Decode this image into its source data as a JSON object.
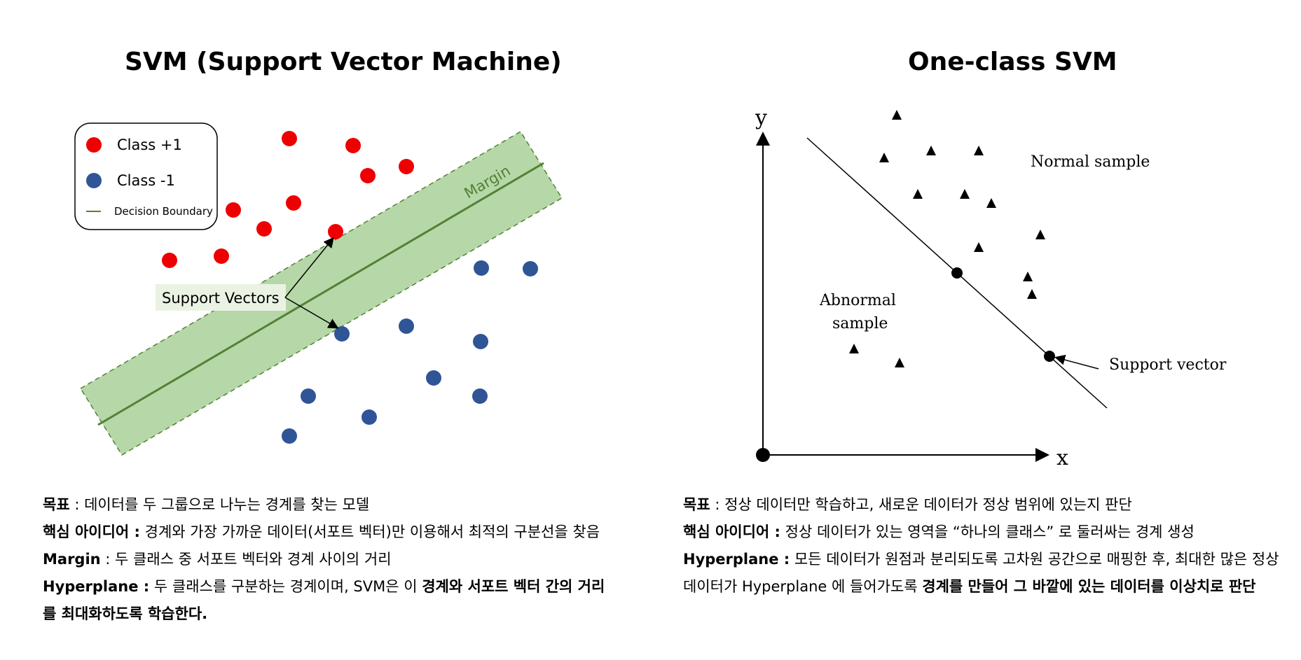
{
  "svm": {
    "title": "SVM (Support Vector Machine)",
    "legend": {
      "class_pos": "Class +1",
      "class_neg": "Class -1",
      "boundary": "Decision Boundary"
    },
    "margin_label": "Margin",
    "support_vectors_label": "Support Vectors",
    "colors": {
      "class_pos": "#ee0000",
      "class_neg": "#2f5597",
      "margin_fill": "#b6d7a8",
      "boundary": "#538135"
    },
    "description": {
      "goal_label": "목표",
      "goal_text": " : 데이터를 두 그룹으로 나누는 경계를 찾는 모델",
      "idea_label": "핵심 아이디어 :",
      "idea_text": " 경계와 가장 가까운 데이터(서포트 벡터)만 이용해서 최적의 구분선을 찾음",
      "margin_label": "Margin",
      "margin_text": " : 두 클래스 중 서포트 벡터와 경계 사이의 거리",
      "hyper_label": "Hyperplane :",
      "hyper_text": " 두 클래스를 구분하는 경계이며, SVM은 이 ",
      "hyper_bold": "경계와 서포트 벡터 간의 거리를 최대화하도록 학습한다."
    }
  },
  "ocsvm": {
    "title": "One-class SVM",
    "axis_y": "y",
    "axis_x": "x",
    "normal_label": "Normal sample",
    "abnormal_label_1": "Abnormal",
    "abnormal_label_2": "sample",
    "support_vector_label": "Support vector",
    "description": {
      "goal_label": "목표",
      "goal_text": " : 정상 데이터만 학습하고, 새로운 데이터가 정상 범위에 있는지 판단",
      "idea_label": "핵심 아이디어 :",
      "idea_text": " 정상 데이터가 있는 영역을 “하나의 클래스” 로 둘러싸는 경계 생성",
      "hyper_label": "Hyperplane :",
      "hyper_text": " 모든 데이터가 원점과 분리되도록 고차원 공간으로 매핑한 후, 최대한 많은 정상 데이터가 Hyperplane 에 들어가도록 ",
      "hyper_bold": "경계를 만들어 그 바깥에 있는 데이터를 이상치로 판단"
    }
  }
}
